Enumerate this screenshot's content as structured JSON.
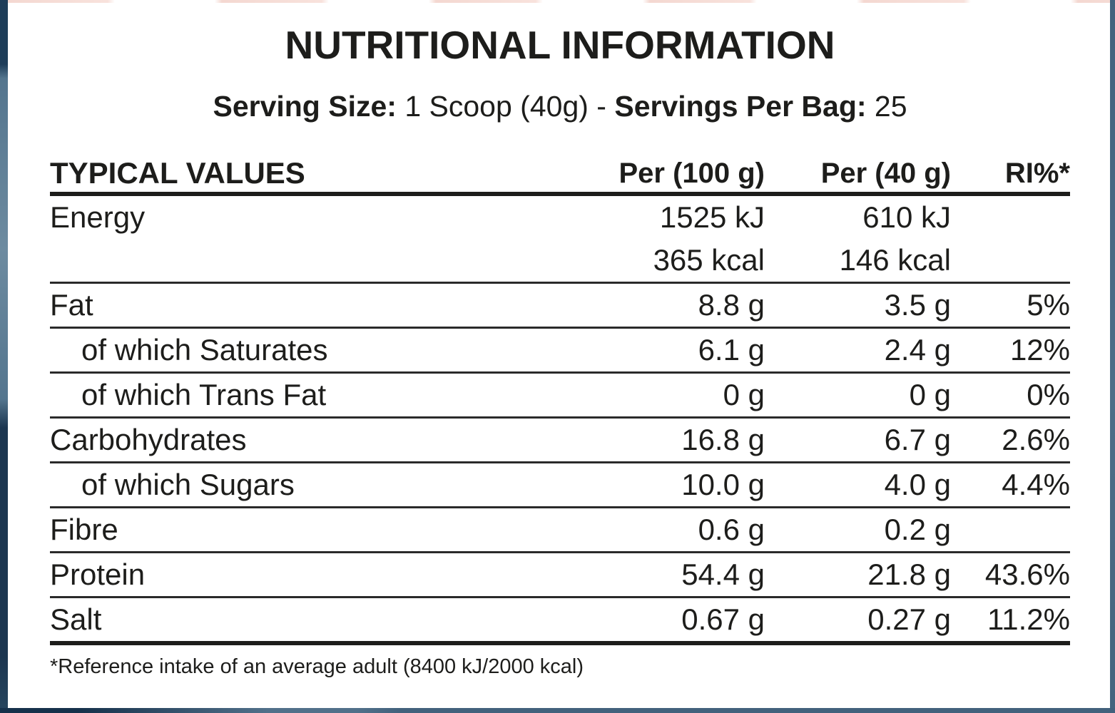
{
  "title": "NUTRITIONAL INFORMATION",
  "serving": {
    "label_size": "Serving Size:",
    "value_size": " 1 Scoop (40g) - ",
    "label_servings": "Servings Per Bag:",
    "value_servings": " 25"
  },
  "table": {
    "headers": {
      "label": "TYPICAL VALUES",
      "per100": "Per (100 g)",
      "per40": "Per (40 g)",
      "ri": "RI%*"
    },
    "rows": [
      {
        "label": "Energy",
        "indent": false,
        "per100": "1525 kJ",
        "per40": "610 kJ",
        "ri": "",
        "divider": "none"
      },
      {
        "label": "",
        "indent": false,
        "per100": "365 kcal",
        "per40": "146 kcal",
        "ri": "",
        "divider": "thin"
      },
      {
        "label": "Fat",
        "indent": false,
        "per100": "8.8 g",
        "per40": "3.5 g",
        "ri": "5%",
        "divider": "thin"
      },
      {
        "label": "of which Saturates",
        "indent": true,
        "per100": "6.1 g",
        "per40": "2.4 g",
        "ri": "12%",
        "divider": "thin"
      },
      {
        "label": "of which Trans Fat",
        "indent": true,
        "per100": "0 g",
        "per40": "0 g",
        "ri": "0%",
        "divider": "thin"
      },
      {
        "label": "Carbohydrates",
        "indent": false,
        "per100": "16.8 g",
        "per40": "6.7 g",
        "ri": "2.6%",
        "divider": "thin"
      },
      {
        "label": "of which Sugars",
        "indent": true,
        "per100": "10.0 g",
        "per40": "4.0 g",
        "ri": "4.4%",
        "divider": "thin"
      },
      {
        "label": "Fibre",
        "indent": false,
        "per100": "0.6 g",
        "per40": "0.2 g",
        "ri": "",
        "divider": "thin"
      },
      {
        "label": "Protein",
        "indent": false,
        "per100": "54.4 g",
        "per40": "21.8 g",
        "ri": "43.6%",
        "divider": "thin"
      },
      {
        "label": "Salt",
        "indent": false,
        "per100": "0.67 g",
        "per40": "0.27 g",
        "ri": "11.2%",
        "divider": "thick"
      }
    ],
    "footnote": "*Reference intake of an average adult (8400 kJ/2000 kcal)"
  },
  "colors": {
    "text": "#1d1d1b",
    "rule_thick": "#1d1d1b",
    "rule_thin": "#2a2a2a",
    "edge_navy": "#1c3650",
    "edge_slate": "#51708a",
    "edge_pink": "#f4d8d1",
    "panel_bg": "#ffffff"
  }
}
